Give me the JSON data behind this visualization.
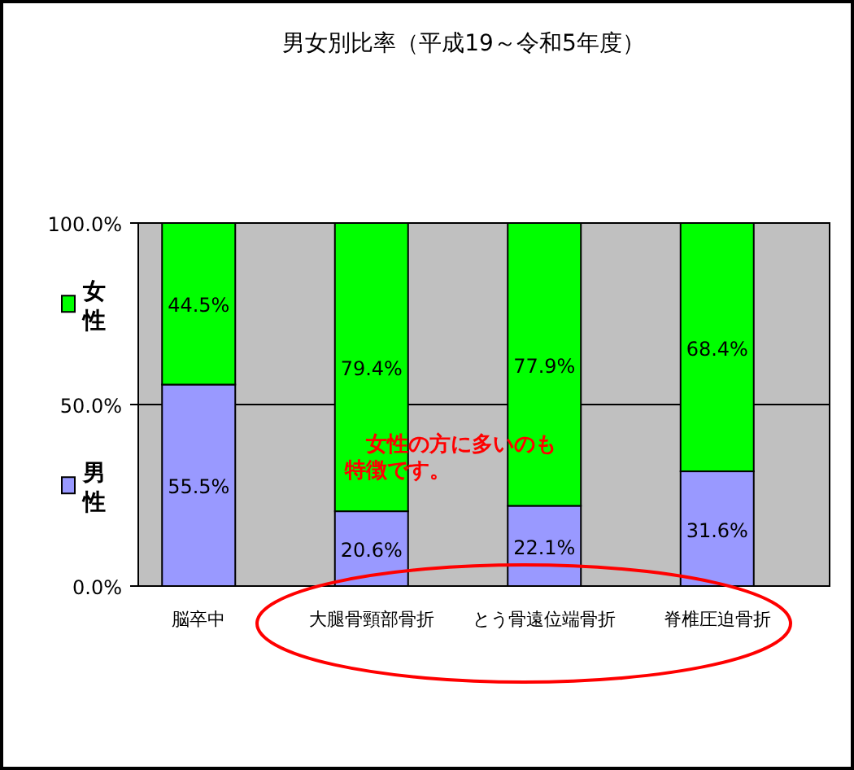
{
  "chart_data": {
    "type": "bar",
    "title": "男女別比率（平成19～令和5年度）",
    "categories": [
      "脳卒中",
      "大腿骨頸部骨折",
      "とう骨遠位端骨折",
      "脊椎圧迫骨折"
    ],
    "stacked": true,
    "series": [
      {
        "name": "男性",
        "color": "#9999ff",
        "values": [
          55.5,
          20.6,
          22.1,
          31.6
        ],
        "value_labels": [
          "55.5%",
          "20.6%",
          "22.1%",
          "31.6%"
        ]
      },
      {
        "name": "女性",
        "color": "#00ff00",
        "values": [
          44.5,
          79.4,
          77.9,
          68.4
        ],
        "value_labels": [
          "44.5%",
          "79.4%",
          "77.9%",
          "68.4%"
        ]
      }
    ],
    "ylim": [
      0,
      100
    ],
    "yticks": [
      {
        "value": 0,
        "label": "0.0%"
      },
      {
        "value": 50,
        "label": "50.0%"
      },
      {
        "value": 100,
        "label": "100.0%"
      }
    ],
    "grid": "y",
    "legend": "left",
    "annotations": [
      "女性の方に多いのも特徴です。"
    ]
  }
}
